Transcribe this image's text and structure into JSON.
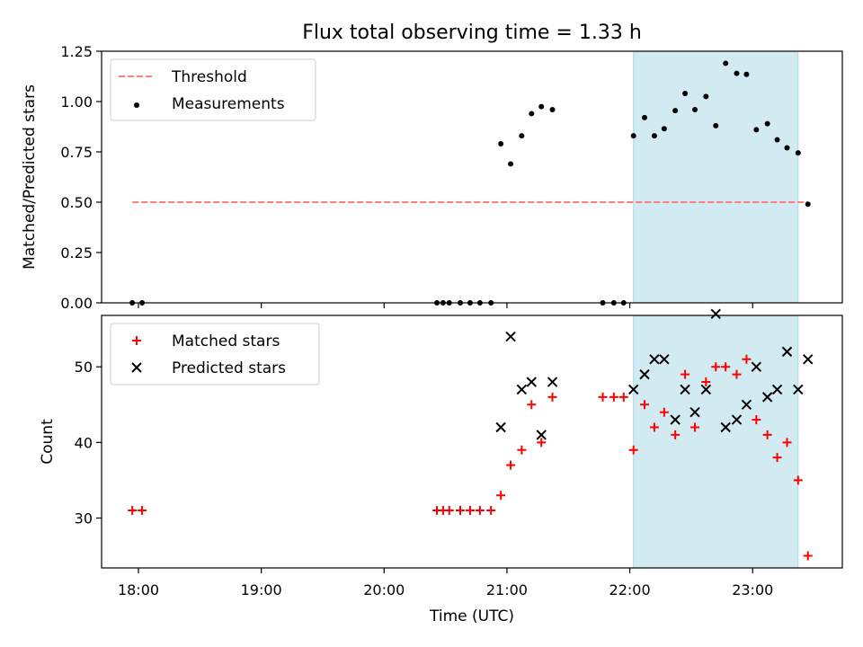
{
  "chart_data": {
    "title": "Flux total observing time = 1.33 h",
    "xlabel": "Time (UTC)",
    "x_tick_labels": [
      "18:00",
      "19:00",
      "20:00",
      "21:00",
      "22:00",
      "23:00"
    ],
    "x_ticks_hours": [
      18,
      19,
      20,
      21,
      22,
      23
    ],
    "xlim_hours": [
      17.7,
      23.73
    ],
    "shaded_region_hours": [
      22.03,
      23.37
    ],
    "shade_color": "#add8e6",
    "panels": [
      {
        "type": "scatter",
        "ylabel": "Matched/Predicted stars",
        "ylim": [
          0,
          1.25
        ],
        "y_ticks": [
          0,
          0.25,
          0.5,
          0.75,
          1.0,
          1.25
        ],
        "y_tick_labels": [
          "0.00",
          "0.25",
          "0.50",
          "0.75",
          "1.00",
          "1.25"
        ],
        "legend": [
          "Threshold",
          "Measurements"
        ],
        "threshold": {
          "name": "Threshold",
          "value": 0.5,
          "x_range_hours": [
            17.95,
            23.45
          ],
          "color": "#ff7f7f"
        },
        "series": [
          {
            "name": "Measurements",
            "color": "#000000",
            "marker": "dot",
            "points": [
              [
                17.95,
                0.0
              ],
              [
                18.03,
                0.0
              ],
              [
                20.43,
                0.0
              ],
              [
                20.48,
                0.0
              ],
              [
                20.53,
                0.0
              ],
              [
                20.62,
                0.0
              ],
              [
                20.7,
                0.0
              ],
              [
                20.78,
                0.0
              ],
              [
                20.87,
                0.0
              ],
              [
                20.95,
                0.79
              ],
              [
                21.03,
                0.69
              ],
              [
                21.12,
                0.83
              ],
              [
                21.2,
                0.94
              ],
              [
                21.28,
                0.975
              ],
              [
                21.37,
                0.96
              ],
              [
                21.78,
                0.0
              ],
              [
                21.87,
                0.0
              ],
              [
                21.95,
                0.0
              ],
              [
                22.03,
                0.83
              ],
              [
                22.12,
                0.92
              ],
              [
                22.2,
                0.83
              ],
              [
                22.28,
                0.865
              ],
              [
                22.37,
                0.955
              ],
              [
                22.45,
                1.04
              ],
              [
                22.53,
                0.96
              ],
              [
                22.62,
                1.025
              ],
              [
                22.7,
                0.88
              ],
              [
                22.78,
                1.19
              ],
              [
                22.87,
                1.14
              ],
              [
                22.95,
                1.135
              ],
              [
                23.03,
                0.86
              ],
              [
                23.12,
                0.89
              ],
              [
                23.2,
                0.81
              ],
              [
                23.28,
                0.77
              ],
              [
                23.37,
                0.745
              ],
              [
                23.45,
                0.49
              ]
            ]
          }
        ]
      },
      {
        "type": "scatter",
        "ylabel": "Count",
        "ylim": [
          23.4,
          56.8
        ],
        "y_ticks": [
          30,
          40,
          50
        ],
        "y_tick_labels": [
          "30",
          "40",
          "50"
        ],
        "legend": [
          "Matched stars",
          "Predicted stars"
        ],
        "series": [
          {
            "name": "Matched stars",
            "color": "#ff0000",
            "marker": "plus",
            "points": [
              [
                17.95,
                31
              ],
              [
                18.03,
                31
              ],
              [
                20.43,
                31
              ],
              [
                20.48,
                31
              ],
              [
                20.53,
                31
              ],
              [
                20.62,
                31
              ],
              [
                20.7,
                31
              ],
              [
                20.78,
                31
              ],
              [
                20.87,
                31
              ],
              [
                20.95,
                33
              ],
              [
                21.03,
                37
              ],
              [
                21.12,
                39
              ],
              [
                21.2,
                45
              ],
              [
                21.28,
                40
              ],
              [
                21.37,
                46
              ],
              [
                21.78,
                46
              ],
              [
                21.87,
                46
              ],
              [
                21.95,
                46
              ],
              [
                22.03,
                39
              ],
              [
                22.12,
                45
              ],
              [
                22.2,
                42
              ],
              [
                22.28,
                44
              ],
              [
                22.37,
                41
              ],
              [
                22.45,
                49
              ],
              [
                22.53,
                42
              ],
              [
                22.62,
                48
              ],
              [
                22.7,
                50
              ],
              [
                22.78,
                50
              ],
              [
                22.87,
                49
              ],
              [
                22.95,
                51
              ],
              [
                23.03,
                43
              ],
              [
                23.12,
                41
              ],
              [
                23.2,
                38
              ],
              [
                23.28,
                40
              ],
              [
                23.37,
                35
              ],
              [
                23.45,
                25
              ]
            ]
          },
          {
            "name": "Predicted stars",
            "color": "#000000",
            "marker": "x",
            "points": [
              [
                20.95,
                42
              ],
              [
                21.03,
                54
              ],
              [
                21.12,
                47
              ],
              [
                21.2,
                48
              ],
              [
                21.28,
                41
              ],
              [
                21.37,
                48
              ],
              [
                22.03,
                47
              ],
              [
                22.12,
                49
              ],
              [
                22.2,
                51
              ],
              [
                22.28,
                51
              ],
              [
                22.37,
                43
              ],
              [
                22.45,
                47
              ],
              [
                22.53,
                44
              ],
              [
                22.62,
                47
              ],
              [
                22.7,
                57
              ],
              [
                22.78,
                42
              ],
              [
                22.87,
                43
              ],
              [
                22.95,
                45
              ],
              [
                23.03,
                50
              ],
              [
                23.12,
                46
              ],
              [
                23.2,
                47
              ],
              [
                23.28,
                52
              ],
              [
                23.37,
                47
              ],
              [
                23.45,
                51
              ]
            ]
          }
        ]
      }
    ]
  }
}
